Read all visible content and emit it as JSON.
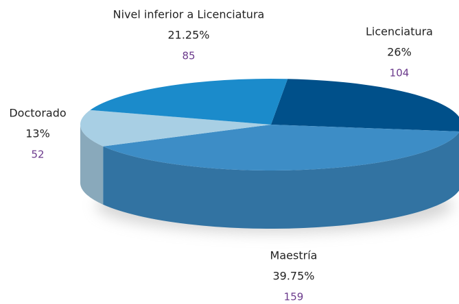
{
  "chart_data": {
    "type": "pie",
    "categories": [
      "Licenciatura",
      "Maestría",
      "Doctorado",
      "Nivel inferior a Licenciatura"
    ],
    "values": [
      26,
      39.75,
      13,
      21.25
    ],
    "value_labels": [
      "26%",
      "39.75%",
      "13%",
      "21.25%"
    ],
    "counts": [
      104,
      159,
      52,
      85
    ],
    "colors": [
      "#00508a",
      "#3d8dc6",
      "#a8cfe4",
      "#1b8bcb"
    ]
  }
}
